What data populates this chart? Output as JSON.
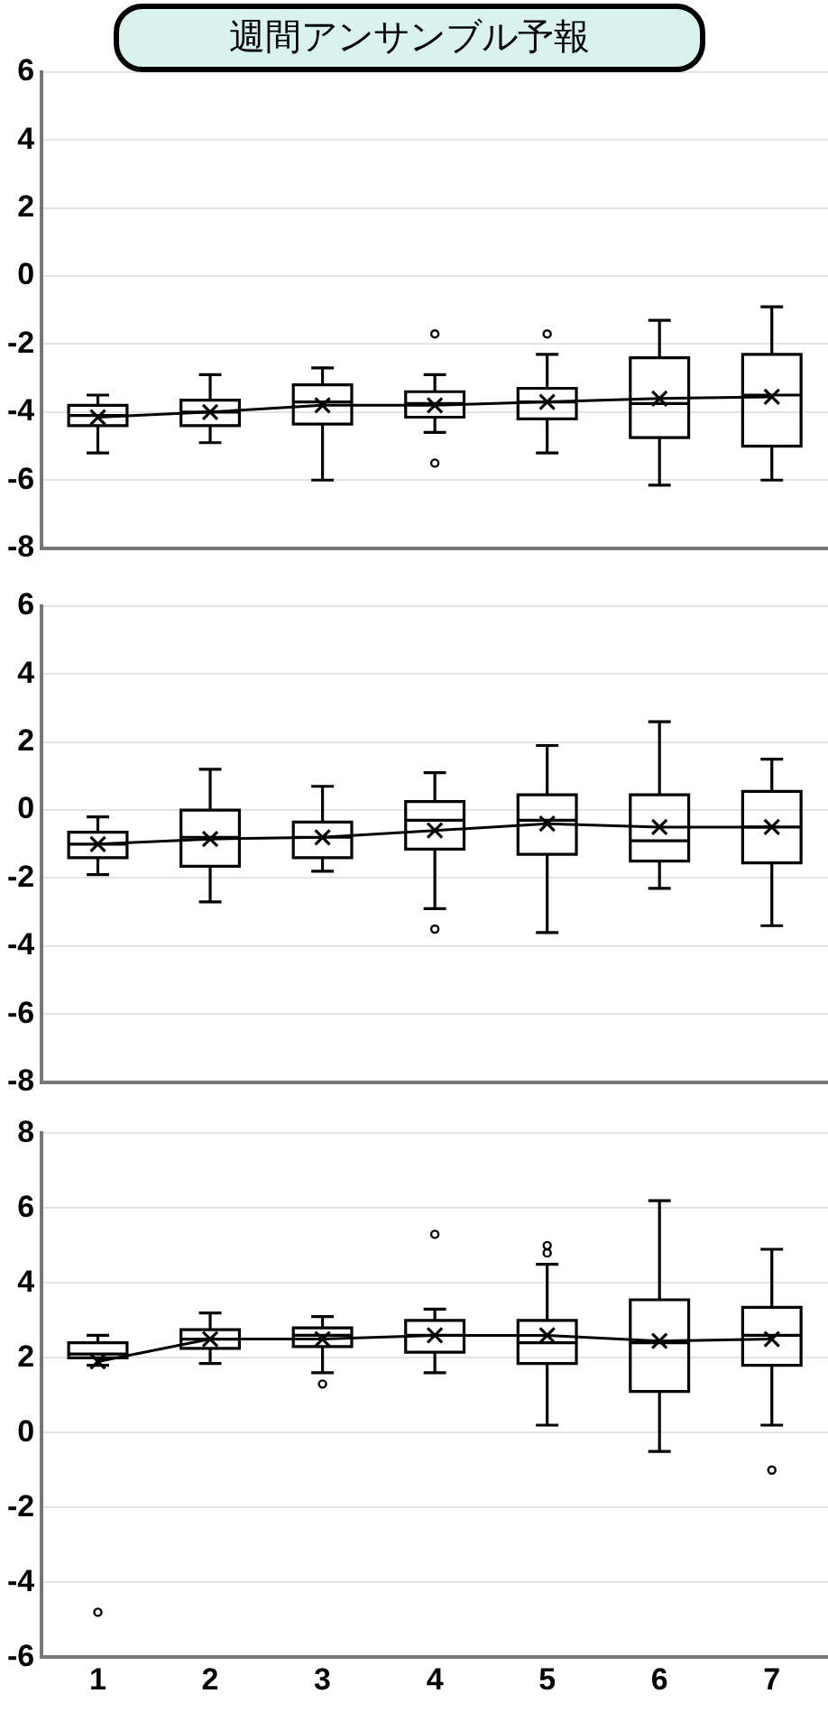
{
  "chart_data": [
    {
      "type": "box",
      "title": "週間アンサンブル予報",
      "categories": [
        "1",
        "2",
        "3",
        "4",
        "5",
        "6",
        "7"
      ],
      "color": "#000000",
      "tick_labels": "y",
      "ylim": [
        -8,
        6
      ],
      "yticks": [
        -8,
        -6,
        -4,
        -2,
        0,
        2,
        4,
        6
      ],
      "grid": "y",
      "legend": false,
      "boxes": [
        {
          "low": -5.2,
          "q1": -4.4,
          "median": -4.1,
          "q3": -3.8,
          "high": -3.5,
          "mean": -4.15
        },
        {
          "low": -4.9,
          "q1": -4.4,
          "median": -4.0,
          "q3": -3.65,
          "high": -2.9,
          "mean": -4.0
        },
        {
          "low": -6.0,
          "q1": -4.35,
          "median": -3.7,
          "q3": -3.2,
          "high": -2.7,
          "mean": -3.8
        },
        {
          "low": -4.6,
          "q1": -4.15,
          "median": -3.75,
          "q3": -3.4,
          "high": -2.9,
          "mean": -3.8,
          "outliers": [
            -1.7,
            -5.5
          ]
        },
        {
          "low": -5.2,
          "q1": -4.2,
          "median": -3.7,
          "q3": -3.3,
          "high": -2.3,
          "mean": -3.7,
          "outliers": [
            -1.7
          ]
        },
        {
          "low": -6.15,
          "q1": -4.75,
          "median": -3.75,
          "q3": -2.4,
          "high": -1.3,
          "mean": -3.6
        },
        {
          "low": -6.0,
          "q1": -5.0,
          "median": -3.5,
          "q3": -2.3,
          "high": -0.9,
          "mean": -3.55
        }
      ],
      "series": [
        {
          "type": "line",
          "color": "#000000",
          "values": [
            -4.15,
            -4.0,
            -3.8,
            -3.8,
            -3.7,
            -3.6,
            -3.55
          ]
        }
      ]
    },
    {
      "type": "box",
      "categories": [
        "1",
        "2",
        "3",
        "4",
        "5",
        "6",
        "7"
      ],
      "color": "#000000",
      "tick_labels": "y",
      "ylim": [
        -8,
        6
      ],
      "yticks": [
        -8,
        -6,
        -4,
        -2,
        0,
        2,
        4,
        6
      ],
      "grid": "y",
      "legend": false,
      "boxes": [
        {
          "low": -1.9,
          "q1": -1.4,
          "median": -1.0,
          "q3": -0.65,
          "high": -0.2,
          "mean": -1.0
        },
        {
          "low": -2.7,
          "q1": -1.65,
          "median": -0.8,
          "q3": 0,
          "high": 1.2,
          "mean": -0.85
        },
        {
          "low": -1.8,
          "q1": -1.4,
          "median": -0.8,
          "q3": -0.35,
          "high": 0.7,
          "mean": -0.8
        },
        {
          "low": -2.9,
          "q1": -1.15,
          "median": -0.3,
          "q3": 0.25,
          "high": 1.1,
          "mean": -0.6,
          "outliers": [
            -3.5
          ]
        },
        {
          "low": -3.6,
          "q1": -1.3,
          "median": -0.3,
          "q3": 0.45,
          "high": 1.9,
          "mean": -0.4
        },
        {
          "low": -2.3,
          "q1": -1.5,
          "median": -0.9,
          "q3": 0.45,
          "high": 2.6,
          "mean": -0.5
        },
        {
          "low": -3.4,
          "q1": -1.55,
          "median": -0.5,
          "q3": 0.55,
          "high": 1.5,
          "mean": -0.5
        }
      ],
      "series": [
        {
          "type": "line",
          "color": "#000000",
          "values": [
            -1.0,
            -0.85,
            -0.8,
            -0.6,
            -0.4,
            -0.5,
            -0.5
          ]
        }
      ]
    },
    {
      "type": "box",
      "categories": [
        "1",
        "2",
        "3",
        "4",
        "5",
        "6",
        "7"
      ],
      "color": "#000000",
      "ylim": [
        -6,
        8
      ],
      "yticks": [
        -6,
        -4,
        -2,
        0,
        2,
        4,
        6,
        8
      ],
      "grid": "y",
      "legend": false,
      "boxes": [
        {
          "low": 1.8,
          "q1": 2.0,
          "median": 2.1,
          "q3": 2.4,
          "high": 2.6,
          "mean": 1.9,
          "outliers": [
            -4.8
          ]
        },
        {
          "low": 1.85,
          "q1": 2.25,
          "median": 2.5,
          "q3": 2.75,
          "high": 3.2,
          "mean": 2.5
        },
        {
          "low": 1.6,
          "q1": 2.3,
          "median": 2.6,
          "q3": 2.8,
          "high": 3.1,
          "mean": 2.5,
          "outliers": [
            1.3
          ]
        },
        {
          "low": 1.6,
          "q1": 2.15,
          "median": 2.6,
          "q3": 3.0,
          "high": 3.3,
          "mean": 2.6,
          "outliers": [
            5.3
          ]
        },
        {
          "low": 0.2,
          "q1": 1.85,
          "median": 2.4,
          "q3": 3.0,
          "high": 4.5,
          "mean": 2.6,
          "outliers": [
            4.8,
            5.0
          ]
        },
        {
          "low": -0.5,
          "q1": 1.1,
          "median": 2.4,
          "q3": 3.55,
          "high": 6.2,
          "mean": 2.45
        },
        {
          "low": 0.2,
          "q1": 1.8,
          "median": 2.6,
          "q3": 3.35,
          "high": 4.9,
          "mean": 2.5,
          "outliers": [
            -1.0
          ]
        }
      ],
      "series": [
        {
          "type": "line",
          "color": "#000000",
          "values": [
            1.9,
            2.5,
            2.5,
            2.6,
            2.6,
            2.45,
            2.5
          ]
        }
      ]
    }
  ]
}
